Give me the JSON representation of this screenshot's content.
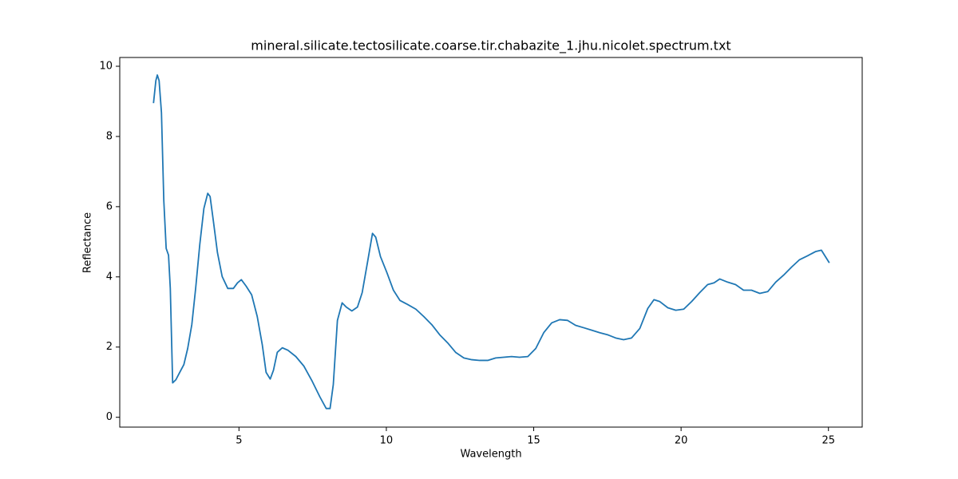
{
  "chart_data": {
    "type": "line",
    "title": "mineral.silicate.tectosilicate.coarse.tir.chabazite_1.jhu.nicolet.spectrum.txt",
    "x_label": "Wavelength",
    "y_label": "Reflectance",
    "color": "#1f77b4",
    "x": [
      2.1,
      2.18,
      2.23,
      2.29,
      2.37,
      2.45,
      2.53,
      2.61,
      2.67,
      2.75,
      2.86,
      2.99,
      3.13,
      3.26,
      3.4,
      3.53,
      3.67,
      3.81,
      3.94,
      4.02,
      4.13,
      4.27,
      4.43,
      4.62,
      4.81,
      4.95,
      5.08,
      5.24,
      5.43,
      5.62,
      5.79,
      5.92,
      6.06,
      6.17,
      6.3,
      6.47,
      6.66,
      6.93,
      7.2,
      7.47,
      7.74,
      7.96,
      8.09,
      8.2,
      8.34,
      8.5,
      8.64,
      8.83,
      9.02,
      9.18,
      9.37,
      9.53,
      9.64,
      9.8,
      10.02,
      10.24,
      10.46,
      10.73,
      11.0,
      11.27,
      11.54,
      11.81,
      12.08,
      12.35,
      12.63,
      12.9,
      13.17,
      13.44,
      13.71,
      13.98,
      14.25,
      14.52,
      14.8,
      15.07,
      15.34,
      15.61,
      15.88,
      16.15,
      16.42,
      16.7,
      16.97,
      17.24,
      17.51,
      17.78,
      18.05,
      18.32,
      18.6,
      18.87,
      19.08,
      19.27,
      19.55,
      19.82,
      20.09,
      20.36,
      20.63,
      20.9,
      21.12,
      21.31,
      21.58,
      21.85,
      22.12,
      22.39,
      22.67,
      22.94,
      23.21,
      23.48,
      23.75,
      24.02,
      24.29,
      24.56,
      24.76,
      25.03
    ],
    "values": [
      8.95,
      9.59,
      9.75,
      9.59,
      8.68,
      6.17,
      4.81,
      4.62,
      3.67,
      0.98,
      1.07,
      1.28,
      1.5,
      1.96,
      2.64,
      3.67,
      4.92,
      5.95,
      6.38,
      6.29,
      5.6,
      4.69,
      4.01,
      3.67,
      3.67,
      3.83,
      3.92,
      3.74,
      3.49,
      2.87,
      2.07,
      1.28,
      1.09,
      1.34,
      1.85,
      1.98,
      1.91,
      1.73,
      1.46,
      1.05,
      0.59,
      0.25,
      0.25,
      0.93,
      2.76,
      3.26,
      3.14,
      3.03,
      3.14,
      3.55,
      4.46,
      5.24,
      5.13,
      4.58,
      4.12,
      3.62,
      3.33,
      3.21,
      3.08,
      2.87,
      2.64,
      2.35,
      2.12,
      1.85,
      1.69,
      1.64,
      1.62,
      1.62,
      1.69,
      1.71,
      1.73,
      1.71,
      1.73,
      1.96,
      2.41,
      2.69,
      2.78,
      2.76,
      2.62,
      2.55,
      2.48,
      2.41,
      2.35,
      2.26,
      2.21,
      2.26,
      2.53,
      3.1,
      3.35,
      3.3,
      3.12,
      3.05,
      3.08,
      3.3,
      3.55,
      3.78,
      3.83,
      3.94,
      3.85,
      3.78,
      3.62,
      3.62,
      3.53,
      3.58,
      3.85,
      4.05,
      4.28,
      4.49,
      4.6,
      4.72,
      4.76,
      4.4
    ],
    "xlim": [
      0.955,
      26.145
    ],
    "ylim": [
      -0.28,
      10.25
    ],
    "xticks": [
      5,
      10,
      15,
      20,
      25
    ],
    "yticks": [
      0,
      2,
      4,
      6,
      8,
      10
    ]
  }
}
